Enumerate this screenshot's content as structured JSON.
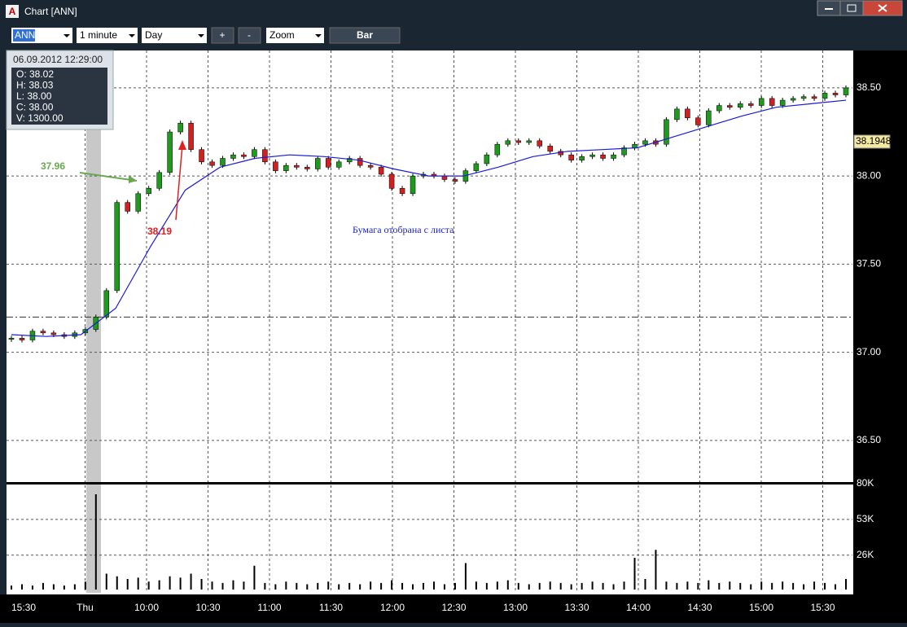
{
  "window": {
    "title": "Chart [ANN]"
  },
  "toolbar": {
    "symbol": "ANN",
    "interval": "1 minute",
    "period": "Day",
    "zoom_in": "+",
    "zoom_out": "-",
    "zoom": "Zoom",
    "style": "Bar"
  },
  "tooltip": {
    "datetime": "06.09.2012 12:29:00",
    "lines": [
      "O: 38.02",
      "H: 38.03",
      "L: 38.00",
      "C: 38.00",
      "V: 1300.00"
    ]
  },
  "chart_data": [
    {
      "type": "candlestick",
      "x_labels": [
        "15:30",
        "Thu",
        "10:00",
        "10:30",
        "11:00",
        "11:30",
        "12:00",
        "12:30",
        "13:00",
        "13:30",
        "14:00",
        "14:30",
        "15:00",
        "15:30"
      ],
      "close": [
        37.08,
        37.07,
        37.12,
        37.11,
        37.1,
        37.09,
        37.11,
        37.13,
        37.2,
        37.35,
        37.85,
        37.8,
        37.9,
        37.93,
        38.02,
        38.25,
        38.3,
        38.15,
        38.08,
        38.06,
        38.1,
        38.12,
        38.11,
        38.15,
        38.08,
        38.03,
        38.06,
        38.05,
        38.04,
        38.1,
        38.05,
        38.08,
        38.1,
        38.06,
        38.05,
        38.01,
        37.93,
        37.9,
        38.0,
        38.01,
        38.0,
        37.98,
        37.97,
        38.03,
        38.07,
        38.12,
        38.18,
        38.2,
        38.19,
        38.2,
        38.17,
        38.14,
        38.12,
        38.09,
        38.11,
        38.12,
        38.1,
        38.12,
        38.16,
        38.18,
        38.2,
        38.18,
        38.32,
        38.38,
        38.33,
        38.29,
        38.37,
        38.4,
        38.39,
        38.41,
        38.4,
        38.44,
        38.4,
        38.43,
        38.44,
        38.45,
        38.44,
        38.47,
        38.46,
        38.5
      ],
      "up_color": "#1f9a1f",
      "down_color": "#d02020",
      "moving_average": [
        37.1,
        37.09,
        37.1,
        37.25,
        37.6,
        37.92,
        38.05,
        38.1,
        38.12,
        38.11,
        38.09,
        38.04,
        38.0,
        38.0,
        38.05,
        38.11,
        38.14,
        38.15,
        38.16,
        38.22,
        38.28,
        38.34,
        38.39,
        38.41,
        38.43
      ],
      "moving_average_color": "#1a1adb",
      "reference_line": 37.2,
      "last_price": 38.1948,
      "ylim": [
        36.264,
        38.712
      ],
      "yticks": [
        {
          "value": 36.5,
          "label": "36.50"
        },
        {
          "value": 37,
          "label": "37.00"
        },
        {
          "value": 37.5,
          "label": "37.50"
        },
        {
          "value": 38,
          "label": "38.00"
        },
        {
          "value": 38.5,
          "label": "38.50"
        }
      ],
      "grid": true,
      "annotations": [
        {
          "text": "37.96",
          "color": "#6aa84f"
        },
        {
          "text": "38.19",
          "color": "#e02020"
        },
        {
          "text": "Бумага отобрана с листа",
          "color": "#2222cc"
        }
      ]
    },
    {
      "type": "bar",
      "values": [
        3,
        4,
        3,
        5,
        4,
        3,
        4,
        6,
        72,
        12,
        10,
        8,
        9,
        6,
        7,
        10,
        9,
        12,
        8,
        6,
        5,
        7,
        6,
        18,
        5,
        4,
        6,
        5,
        4,
        5,
        6,
        4,
        5,
        4,
        6,
        5,
        7,
        5,
        4,
        5,
        6,
        4,
        5,
        20,
        6,
        5,
        6,
        7,
        5,
        4,
        5,
        6,
        5,
        4,
        5,
        6,
        5,
        4,
        6,
        24,
        8,
        30,
        6,
        5,
        6,
        5,
        7,
        5,
        6,
        5,
        4,
        6,
        5,
        6,
        5,
        4,
        6,
        5,
        4,
        8
      ],
      "color": "#000000",
      "ylim": [
        0,
        80
      ],
      "yticks": [
        {
          "value": 26,
          "label": "26K"
        },
        {
          "value": 53,
          "label": "53K"
        },
        {
          "value": 80,
          "label": "80K"
        }
      ],
      "grid": true
    }
  ]
}
